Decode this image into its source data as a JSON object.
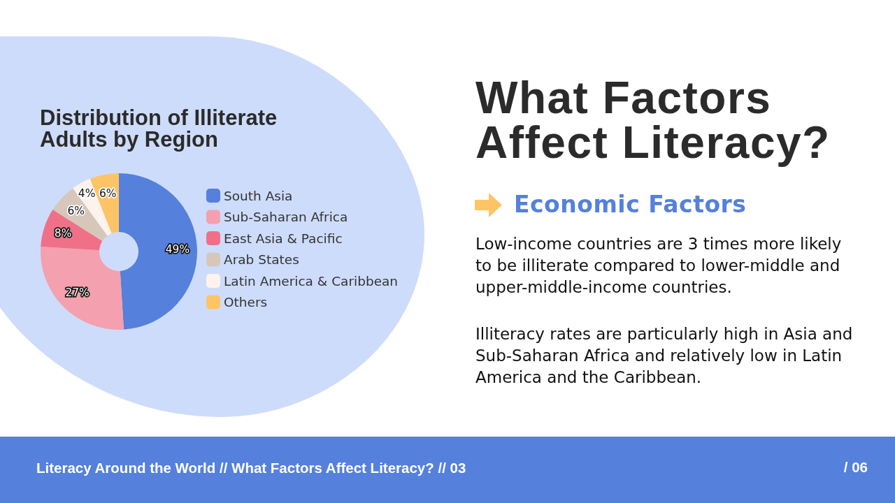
{
  "chart_data": {
    "type": "donut",
    "title": "Distribution of Illiterate Adults by Region",
    "categories": [
      "South Asia",
      "Sub-Saharan Africa",
      "East Asia & Pacific",
      "Arab States",
      "Latin America & Caribbean",
      "Others"
    ],
    "values": [
      49,
      27,
      8,
      6,
      4,
      6
    ],
    "colors": [
      "#5580dc",
      "#f4a0ae",
      "#f07088",
      "#d7c7bb",
      "#fdf3ec",
      "#ffc466"
    ],
    "value_labels": [
      "49%",
      "27%",
      "8%",
      "6%",
      "4%",
      "6%"
    ],
    "legend": "right",
    "annotations": [
      "What Factors Affect Literacy?",
      "Economic Factors",
      "Low-income countries are 3 times more likely to be illiterate compared to lower-middle and upper-middle-income countries.",
      "Illiteracy rates are particularly high in Asia and Sub-Saharan Africa and relatively low in Latin America and the Caribbean.",
      "Literacy Around the World // What Factors Affect Literacy? // 03",
      "/ 06"
    ]
  }
}
